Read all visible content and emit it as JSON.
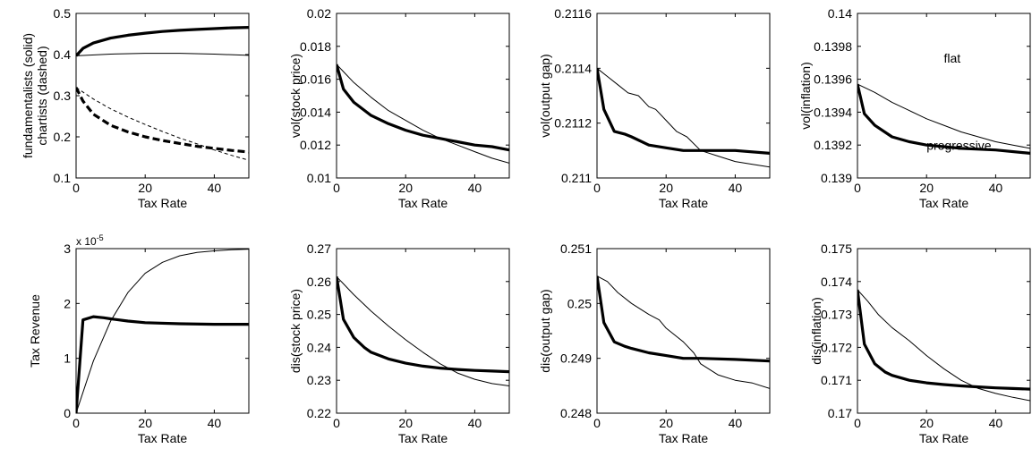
{
  "chart_data": [
    {
      "type": "line",
      "xlabel": "Tax Rate",
      "ylabel": "fundamentalists (solid)\nchartists (dashed)",
      "xlim": [
        0,
        50
      ],
      "ylim": [
        0.1,
        0.5
      ],
      "xticks": [
        "0",
        "20",
        "40"
      ],
      "yticks": [
        "0.1",
        "0.2",
        "0.3",
        "0.4",
        "0.5"
      ],
      "series": [
        {
          "style": "thick",
          "x": [
            0,
            2,
            5,
            10,
            15,
            20,
            25,
            30,
            35,
            40,
            45,
            50
          ],
          "y": [
            0.397,
            0.415,
            0.428,
            0.44,
            0.447,
            0.452,
            0.456,
            0.459,
            0.461,
            0.463,
            0.465,
            0.466
          ]
        },
        {
          "style": "thin",
          "x": [
            0,
            10,
            20,
            30,
            40,
            50
          ],
          "y": [
            0.397,
            0.401,
            0.403,
            0.403,
            0.401,
            0.398
          ]
        },
        {
          "style": "thick-dashed",
          "x": [
            0,
            2,
            5,
            10,
            15,
            20,
            25,
            30,
            35,
            40,
            45,
            50
          ],
          "y": [
            0.32,
            0.287,
            0.255,
            0.228,
            0.212,
            0.2,
            0.191,
            0.184,
            0.177,
            0.172,
            0.167,
            0.163
          ]
        },
        {
          "style": "thin-dashed",
          "x": [
            0,
            5,
            10,
            15,
            20,
            25,
            30,
            35,
            40,
            45,
            50
          ],
          "y": [
            0.32,
            0.292,
            0.268,
            0.248,
            0.23,
            0.213,
            0.197,
            0.183,
            0.168,
            0.155,
            0.143
          ]
        }
      ]
    },
    {
      "type": "line",
      "xlabel": "Tax Rate",
      "ylabel": "vol(stock price)",
      "xlim": [
        0,
        50
      ],
      "ylim": [
        0.01,
        0.02
      ],
      "xticks": [
        "0",
        "20",
        "40"
      ],
      "yticks": [
        "0.01",
        "0.012",
        "0.014",
        "0.016",
        "0.018",
        "0.02"
      ],
      "series": [
        {
          "style": "thick",
          "x": [
            0,
            2,
            5,
            10,
            15,
            20,
            25,
            30,
            35,
            40,
            45,
            50
          ],
          "y": [
            0.0169,
            0.0154,
            0.0146,
            0.0138,
            0.0133,
            0.0129,
            0.0126,
            0.0124,
            0.0122,
            0.012,
            0.0119,
            0.0117
          ]
        },
        {
          "style": "thin",
          "x": [
            0,
            5,
            10,
            15,
            20,
            25,
            30,
            35,
            40,
            45,
            50
          ],
          "y": [
            0.0169,
            0.0158,
            0.0149,
            0.0141,
            0.0135,
            0.0129,
            0.0124,
            0.012,
            0.0116,
            0.0112,
            0.0109
          ]
        }
      ]
    },
    {
      "type": "line",
      "xlabel": "Tax Rate",
      "ylabel": "vol(output gap)",
      "xlim": [
        0,
        50
      ],
      "ylim": [
        0.211,
        0.2116
      ],
      "xticks": [
        "0",
        "20",
        "40"
      ],
      "yticks": [
        "0.211",
        "0.2112",
        "0.2114",
        "0.2116"
      ],
      "series": [
        {
          "style": "thick",
          "x": [
            0,
            2,
            5,
            8,
            10,
            15,
            20,
            25,
            30,
            40,
            50
          ],
          "y": [
            0.2114,
            0.21125,
            0.21117,
            0.21116,
            0.21115,
            0.21112,
            0.21111,
            0.2111,
            0.2111,
            0.2111,
            0.21109
          ]
        },
        {
          "style": "thin",
          "x": [
            0,
            3,
            6,
            9,
            12,
            15,
            17,
            20,
            23,
            26,
            30,
            35,
            40,
            45,
            50
          ],
          "y": [
            0.2114,
            0.21137,
            0.21134,
            0.21131,
            0.2113,
            0.21126,
            0.21125,
            0.21121,
            0.21117,
            0.21115,
            0.2111,
            0.21108,
            0.21106,
            0.21105,
            0.21104
          ]
        }
      ]
    },
    {
      "type": "line",
      "xlabel": "Tax Rate",
      "ylabel": "vol(inflation)",
      "xlim": [
        0,
        50
      ],
      "ylim": [
        0.139,
        0.14
      ],
      "xticks": [
        "0",
        "20",
        "40"
      ],
      "yticks": [
        "0.139",
        "0.1392",
        "0.1394",
        "0.1396",
        "0.1398",
        "0.14"
      ],
      "annotations": [
        "flat",
        "progressive"
      ],
      "series": [
        {
          "style": "thick",
          "x": [
            0,
            2,
            5,
            10,
            15,
            20,
            25,
            30,
            40,
            50
          ],
          "y": [
            0.13957,
            0.13939,
            0.13932,
            0.13925,
            0.13922,
            0.1392,
            0.13919,
            0.13918,
            0.13917,
            0.13915
          ]
        },
        {
          "style": "thin",
          "x": [
            0,
            5,
            10,
            15,
            20,
            25,
            30,
            35,
            40,
            45,
            50
          ],
          "y": [
            0.13957,
            0.13952,
            0.13946,
            0.13941,
            0.13936,
            0.13932,
            0.13928,
            0.13925,
            0.13922,
            0.1392,
            0.13918
          ]
        }
      ]
    },
    {
      "type": "line",
      "xlabel": "Tax Rate",
      "ylabel": "Tax Revenue",
      "axis_multiplier": "x 10",
      "axis_multiplier_exponent": "-5",
      "xlim": [
        0,
        50
      ],
      "ylim": [
        0,
        3
      ],
      "xticks": [
        "0",
        "20",
        "40"
      ],
      "yticks": [
        "0",
        "1",
        "2",
        "3"
      ],
      "series": [
        {
          "style": "thick",
          "x": [
            0,
            2,
            5,
            8,
            10,
            15,
            20,
            30,
            40,
            50
          ],
          "y": [
            0,
            1.7,
            1.76,
            1.74,
            1.72,
            1.68,
            1.65,
            1.63,
            1.62,
            1.62
          ]
        },
        {
          "style": "thin",
          "x": [
            0,
            5,
            10,
            15,
            20,
            25,
            30,
            35,
            40,
            45,
            50
          ],
          "y": [
            0,
            0.95,
            1.68,
            2.2,
            2.55,
            2.75,
            2.87,
            2.93,
            2.96,
            2.98,
            2.99
          ]
        }
      ]
    },
    {
      "type": "line",
      "xlabel": "Tax Rate",
      "ylabel": "dis(stock price)",
      "xlim": [
        0,
        50
      ],
      "ylim": [
        0.22,
        0.27
      ],
      "xticks": [
        "0",
        "20",
        "40"
      ],
      "yticks": [
        "0.22",
        "0.23",
        "0.24",
        "0.25",
        "0.26",
        "0.27"
      ],
      "series": [
        {
          "style": "thick",
          "x": [
            0,
            2,
            5,
            8,
            10,
            15,
            20,
            25,
            30,
            35,
            40,
            45,
            50
          ],
          "y": [
            0.2615,
            0.2485,
            0.243,
            0.24,
            0.2385,
            0.2365,
            0.2352,
            0.2343,
            0.2337,
            0.2333,
            0.233,
            0.2328,
            0.2326
          ]
        },
        {
          "style": "thin",
          "x": [
            0,
            5,
            10,
            15,
            20,
            25,
            30,
            35,
            40,
            45,
            50
          ],
          "y": [
            0.2615,
            0.256,
            0.251,
            0.2465,
            0.2423,
            0.2385,
            0.235,
            0.2322,
            0.2303,
            0.229,
            0.2283
          ]
        }
      ]
    },
    {
      "type": "line",
      "xlabel": "Tax Rate",
      "ylabel": "dis(output gap)",
      "xlim": [
        0,
        50
      ],
      "ylim": [
        0.248,
        0.251
      ],
      "xticks": [
        "0",
        "20",
        "40"
      ],
      "yticks": [
        "0.248",
        "0.249",
        "0.25",
        "0.251"
      ],
      "series": [
        {
          "style": "thick",
          "x": [
            0,
            2,
            5,
            8,
            10,
            15,
            20,
            25,
            30,
            40,
            50
          ],
          "y": [
            0.2505,
            0.24965,
            0.2493,
            0.24922,
            0.24918,
            0.2491,
            0.24905,
            0.249,
            0.249,
            0.24898,
            0.24895
          ]
        },
        {
          "style": "thin",
          "x": [
            0,
            3,
            6,
            10,
            15,
            18,
            20,
            25,
            28,
            30,
            35,
            40,
            45,
            50
          ],
          "y": [
            0.2505,
            0.2504,
            0.2502,
            0.25,
            0.2498,
            0.2497,
            0.24955,
            0.2493,
            0.2491,
            0.2489,
            0.2487,
            0.2486,
            0.24855,
            0.24845
          ]
        }
      ]
    },
    {
      "type": "line",
      "xlabel": "Tax Rate",
      "ylabel": "dis(inflation)",
      "xlim": [
        0,
        50
      ],
      "ylim": [
        0.17,
        0.175
      ],
      "xticks": [
        "0",
        "20",
        "40"
      ],
      "yticks": [
        "0.17",
        "0.171",
        "0.172",
        "0.173",
        "0.174",
        "0.175"
      ],
      "series": [
        {
          "style": "thick",
          "x": [
            0,
            2,
            5,
            8,
            10,
            15,
            20,
            25,
            30,
            35,
            40,
            45,
            50
          ],
          "y": [
            0.17375,
            0.1721,
            0.1715,
            0.17125,
            0.17115,
            0.171,
            0.17092,
            0.17087,
            0.17083,
            0.1708,
            0.17077,
            0.17075,
            0.17073
          ]
        },
        {
          "style": "thin",
          "x": [
            0,
            3,
            6,
            10,
            15,
            20,
            25,
            30,
            35,
            40,
            45,
            50
          ],
          "y": [
            0.17375,
            0.1734,
            0.173,
            0.1726,
            0.1722,
            0.17175,
            0.17135,
            0.171,
            0.17075,
            0.1706,
            0.17048,
            0.17038
          ]
        }
      ]
    }
  ]
}
